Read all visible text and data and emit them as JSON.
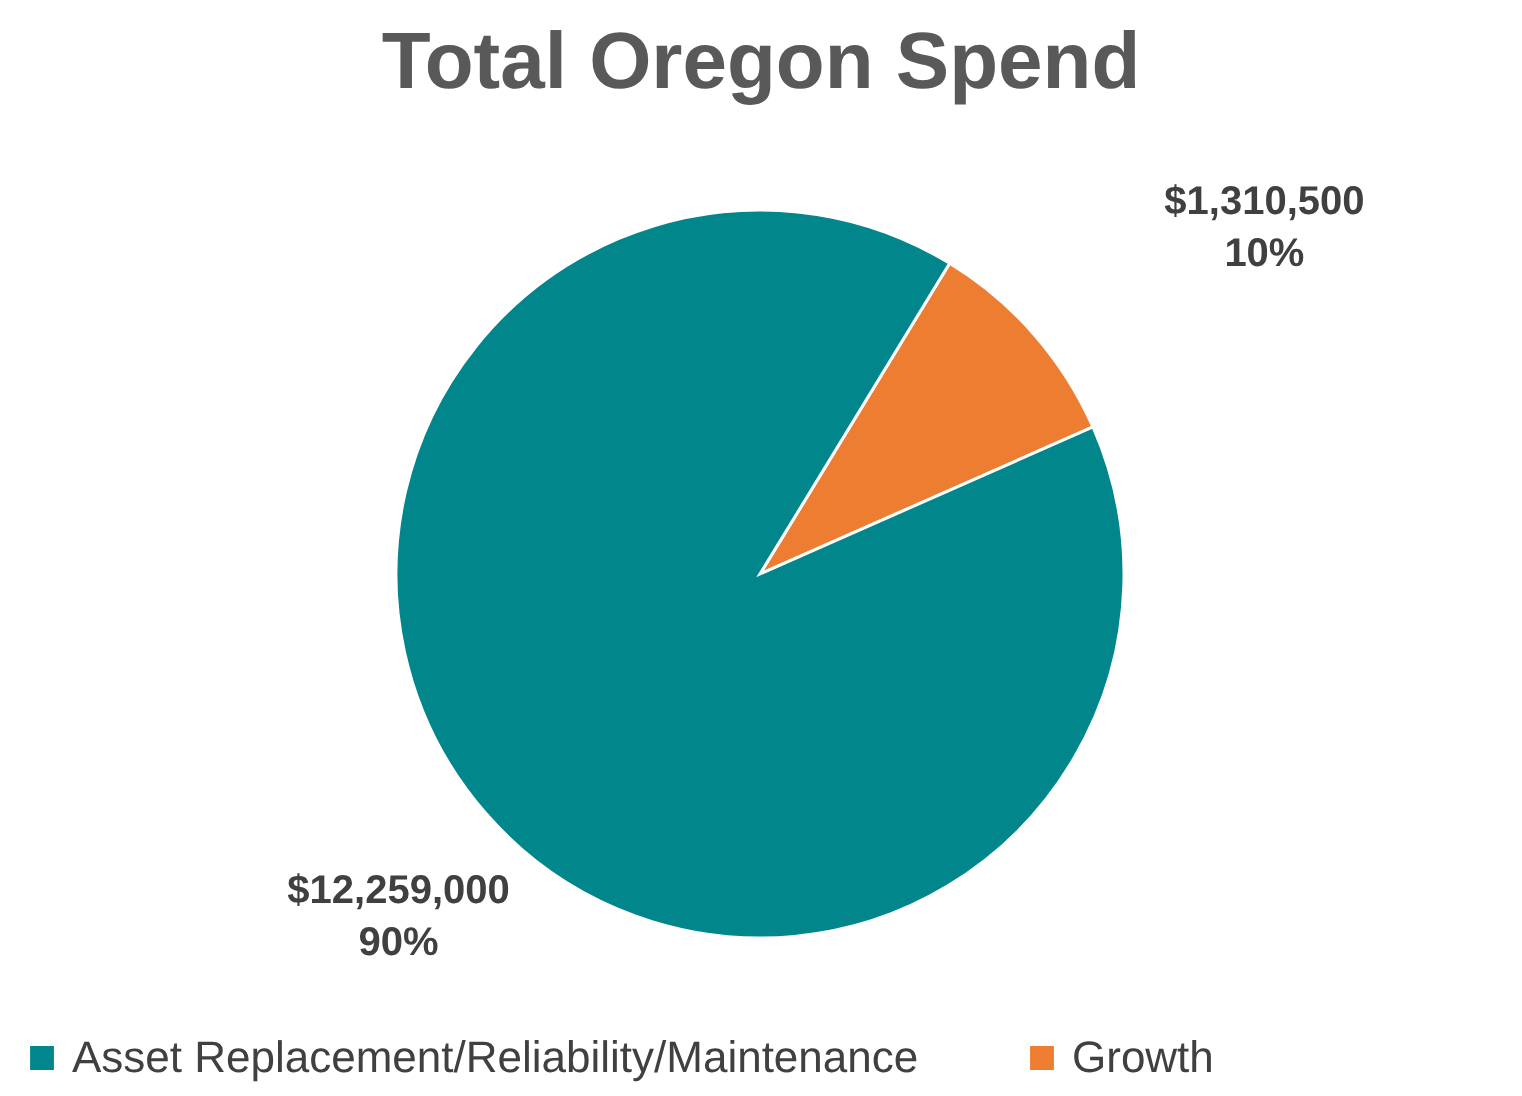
{
  "chart_data": {
    "type": "pie",
    "title": "Total Oregon Spend",
    "categories": [
      "Asset Replacement/Reliability/Maintenance",
      "Growth"
    ],
    "values": [
      12259000,
      1310500
    ],
    "colors": [
      "#00868b",
      "#ed7d31"
    ],
    "value_labels": [
      "$12,259,000\n90%",
      "$1,310,500\n10%"
    ],
    "legend": "bottom"
  }
}
